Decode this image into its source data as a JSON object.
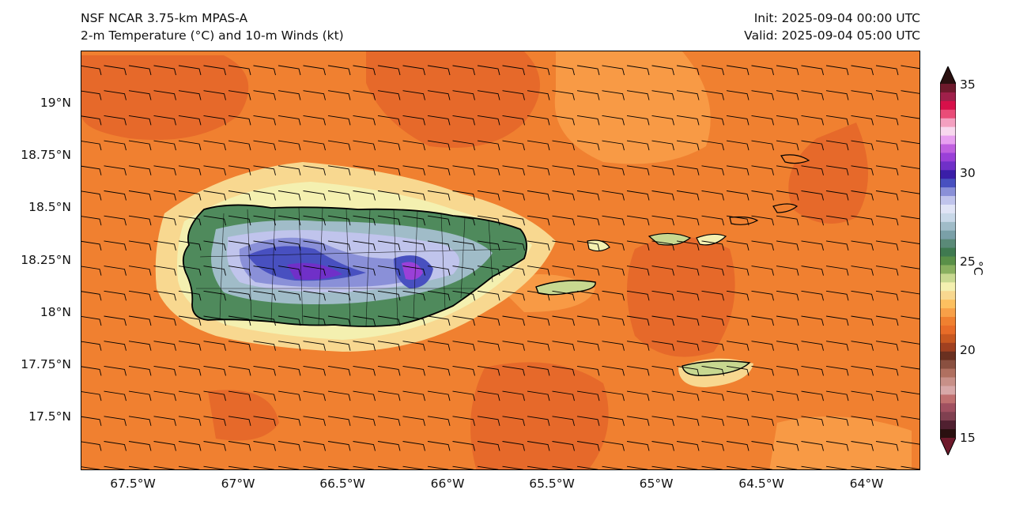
{
  "header": {
    "model": "NSF NCAR 3.75-km MPAS-A",
    "field": "2-m Temperature (°C) and 10-m Winds (kt)",
    "init": "Init: 2025-09-04 00:00 UTC",
    "valid": "Valid: 2025-09-04 05:00 UTC"
  },
  "map": {
    "lat_labels": [
      "19°N",
      "18.75°N",
      "18.5°N",
      "18.25°N",
      "18°N",
      "17.75°N",
      "17.5°N"
    ],
    "lon_labels": [
      "67.5°W",
      "67°W",
      "66.5°W",
      "66°W",
      "65.5°W",
      "65°W",
      "64.5°W",
      "64°W"
    ],
    "lon_range": [
      -67.78,
      -63.75
    ],
    "lat_range": [
      17.3,
      19.32
    ],
    "ocean_color": "#f08030",
    "wind": {
      "speed_kt": 10,
      "direction_deg": 90
    }
  },
  "colorbar": {
    "unit": "°C",
    "tick_labels": [
      "35",
      "30",
      "25",
      "20",
      "15"
    ],
    "range": [
      15,
      35
    ],
    "colors": [
      "#6e1a2c",
      "#a0204a",
      "#d8104a",
      "#ea4c78",
      "#f4a0c0",
      "#f8d8ee",
      "#e8a0f0",
      "#c060e0",
      "#9a40d8",
      "#7030c8",
      "#3a1ea8",
      "#4850c0",
      "#8a90d8",
      "#c0c4ec",
      "#e0e4f6",
      "#c8d8e8",
      "#a0bcc8",
      "#7aa0a8",
      "#5a8a78",
      "#3f7a50",
      "#5a9048",
      "#8ab060",
      "#c8d890",
      "#f4f0b0",
      "#f8d890",
      "#fcc060",
      "#f8a048",
      "#f08030",
      "#e86c28",
      "#c85820",
      "#a04020",
      "#6a3020",
      "#8a5040",
      "#b07060",
      "#c89088",
      "#d8a8a8",
      "#c07070",
      "#a05060",
      "#804050",
      "#502030",
      "#2a1010"
    ]
  },
  "colors": {
    "ocean": "#f08030",
    "warm_patch": "#e6692a",
    "light_patch": "#f89a45",
    "coast": "#000000"
  }
}
